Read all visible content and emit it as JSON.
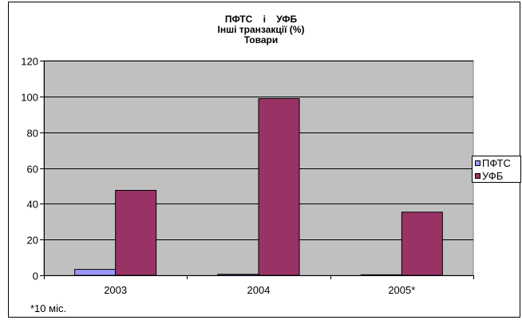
{
  "chart_data": {
    "type": "bar",
    "title": [
      "ПФТС    і    УФБ",
      "Інші транзакції (%)",
      "Товари"
    ],
    "categories": [
      "2003",
      "2004",
      "2005*"
    ],
    "series": [
      {
        "name": "ПФТС",
        "color": "#9999ff",
        "values": [
          3.3,
          0.6,
          0.3
        ]
      },
      {
        "name": "УФБ",
        "color": "#993366",
        "values": [
          47.5,
          98.8,
          35.3
        ]
      }
    ],
    "ylim": [
      0,
      120
    ],
    "yticks": [
      "0",
      "20",
      "40",
      "60",
      "80",
      "100",
      "120"
    ],
    "grid": true,
    "plot_background": "#c0c0c0",
    "legend_position": "right",
    "footnote": "*10 міс."
  }
}
